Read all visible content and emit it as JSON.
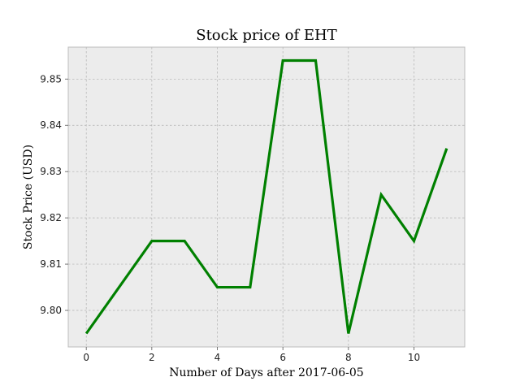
{
  "chart_data": {
    "type": "line",
    "title": "Stock price of EHT",
    "xlabel": "Number of Days after 2017-06-05",
    "ylabel": "Stock Price (USD)",
    "x": [
      0,
      1,
      2,
      3,
      4,
      5,
      6,
      7,
      8,
      9,
      10,
      11
    ],
    "series": [
      {
        "values": [
          9.795,
          9.805,
          9.815,
          9.815,
          9.805,
          9.805,
          9.854,
          9.854,
          9.795,
          9.825,
          9.815,
          9.835
        ]
      }
    ],
    "xlim": [
      -0.55,
      11.55
    ],
    "ylim": [
      9.7921,
      9.8569
    ],
    "xticks": [
      0,
      2,
      4,
      6,
      8,
      10
    ],
    "yticks": [
      9.8,
      9.81,
      9.82,
      9.83,
      9.84,
      9.85
    ],
    "ytick_labels": [
      "9.80",
      "9.81",
      "9.82",
      "9.83",
      "9.84",
      "9.85"
    ],
    "grid": true,
    "colors": {
      "line": "#008000",
      "plot_background": "#ececec",
      "grid": "#b0b0b0",
      "frame": "#bcbcbc"
    }
  }
}
